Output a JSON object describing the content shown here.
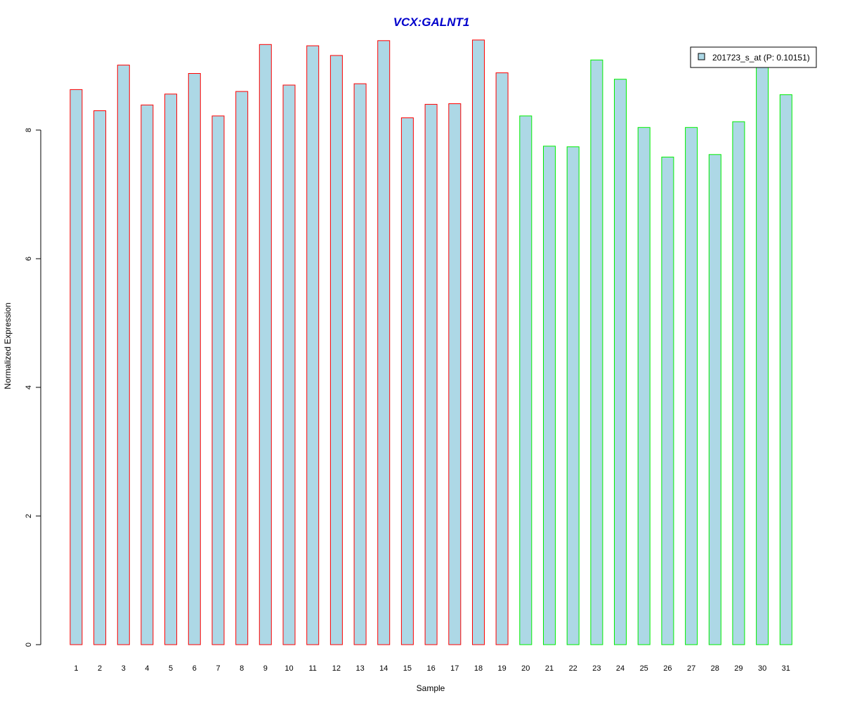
{
  "chart_data": {
    "type": "bar",
    "title": "VCX:GALNT1",
    "xlabel": "Sample",
    "ylabel": "Normalized Expression",
    "categories": [
      "1",
      "2",
      "3",
      "4",
      "5",
      "6",
      "7",
      "8",
      "9",
      "10",
      "11",
      "12",
      "13",
      "14",
      "15",
      "16",
      "17",
      "18",
      "19",
      "20",
      "21",
      "22",
      "23",
      "24",
      "25",
      "26",
      "27",
      "28",
      "29",
      "30",
      "31"
    ],
    "series": [
      {
        "name": "201723_s_at (P: 0.10151)",
        "values": [
          8.63,
          8.3,
          9.01,
          8.39,
          8.56,
          8.88,
          8.22,
          8.6,
          9.33,
          8.7,
          9.31,
          9.16,
          8.72,
          9.39,
          8.19,
          8.4,
          8.41,
          9.4,
          8.89,
          8.22,
          7.75,
          7.74,
          9.09,
          8.79,
          8.04,
          7.58,
          8.04,
          7.62,
          8.13,
          9.06,
          8.55
        ]
      }
    ],
    "group_of_sample": [
      1,
      1,
      1,
      1,
      1,
      1,
      1,
      1,
      1,
      1,
      1,
      1,
      1,
      1,
      1,
      1,
      1,
      1,
      1,
      2,
      2,
      2,
      2,
      2,
      2,
      2,
      2,
      2,
      2,
      2,
      2
    ],
    "yticks": [
      0,
      2,
      4,
      6,
      8
    ],
    "ylim": [
      0,
      9.4
    ],
    "legend_position": "top-right",
    "grid": false,
    "colors": {
      "title": "#0000cc",
      "bar_fill": "#add8e6",
      "group1_border": "#ff0000",
      "group2_border": "#00ee00",
      "axis": "#000000"
    }
  }
}
